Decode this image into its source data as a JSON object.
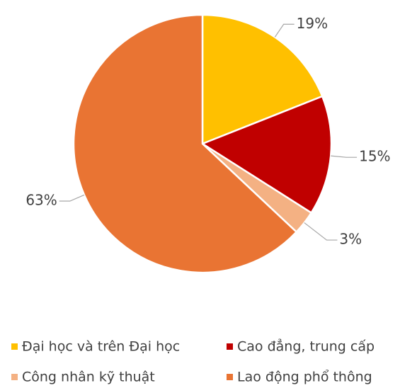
{
  "chart_data": {
    "type": "pie",
    "categories": [
      "Đại học và trên Đại học",
      "Cao đẳng, trung cấp",
      "Công nhân kỹ thuật",
      "Lao động phổ thông"
    ],
    "values": [
      19,
      15,
      3,
      63
    ],
    "value_labels": [
      "19%",
      "15%",
      "3%",
      "63%"
    ],
    "colors": [
      "#ffc000",
      "#c00000",
      "#f4b183",
      "#e97433"
    ],
    "legend": "bottom"
  }
}
